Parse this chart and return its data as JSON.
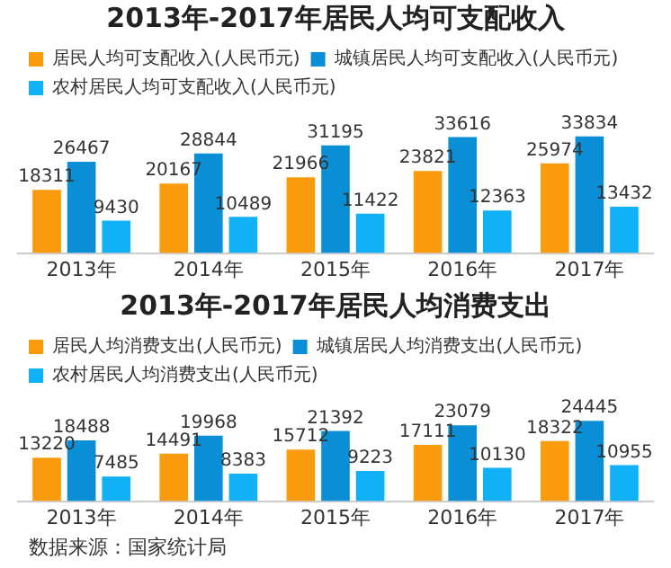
{
  "chart_data": [
    {
      "type": "bar",
      "title": "2013年-2017年居民人均可支配收入",
      "categories": [
        "2013年",
        "2014年",
        "2015年",
        "2016年",
        "2017年"
      ],
      "series": [
        {
          "name": "居民人均可支配收入(人民币元)",
          "color": "#f99b0c",
          "values": [
            18311,
            20167,
            21966,
            23821,
            25974
          ]
        },
        {
          "name": "城镇居民人均可支配收入(人民币元)",
          "color": "#0a8fd6",
          "values": [
            26467,
            28844,
            31195,
            33616,
            33834
          ]
        },
        {
          "name": "农村居民人均可支配收入(人民币元)",
          "color": "#10b1f7",
          "values": [
            9430,
            10489,
            11422,
            12363,
            13432
          ]
        }
      ],
      "data_labels": true,
      "grid": false,
      "legend": "top",
      "tick_labels": "x"
    },
    {
      "type": "bar",
      "title": "2013年-2017年居民人均消费支出",
      "categories": [
        "2013年",
        "2014年",
        "2015年",
        "2016年",
        "2017年"
      ],
      "series": [
        {
          "name": "居民人均消费支出(人民币元)",
          "color": "#f99b0c",
          "values": [
            13220,
            14491,
            15712,
            17111,
            18322
          ]
        },
        {
          "name": "城镇居民人均消费支出(人民币元)",
          "color": "#0a8fd6",
          "values": [
            18488,
            19968,
            21392,
            23079,
            24445
          ]
        },
        {
          "name": "农村居民人均消费支出(人民币元)",
          "color": "#10b1f7",
          "values": [
            7485,
            8383,
            9223,
            10130,
            10955
          ]
        }
      ],
      "data_labels": true,
      "grid": false,
      "legend": "top",
      "tick_labels": "x",
      "annotations": [
        "数据来源：国家统计局"
      ]
    }
  ]
}
